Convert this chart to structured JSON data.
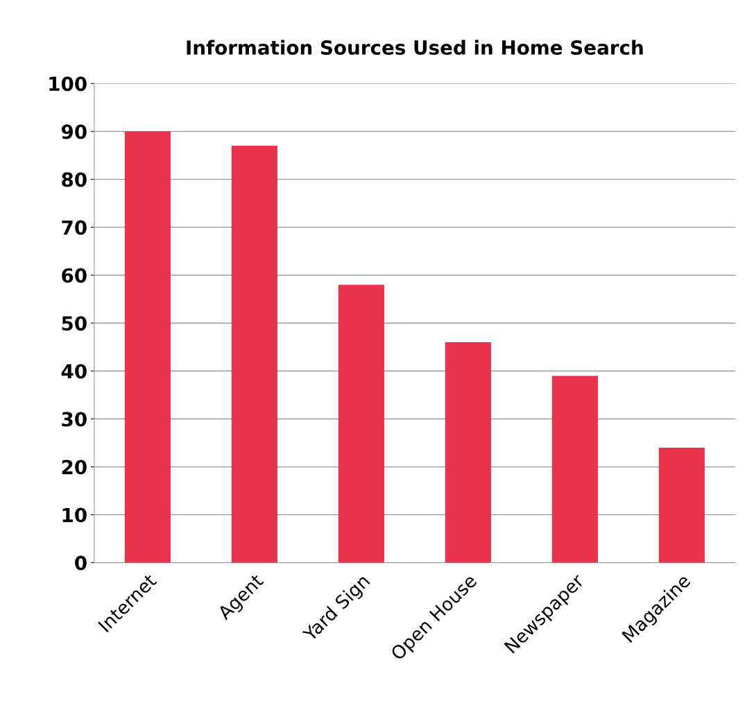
{
  "chart_data": {
    "type": "bar",
    "title": "Information Sources Used in Home Search",
    "categories": [
      "Internet",
      "Agent",
      "Yard Sign",
      "Open House",
      "Newspaper",
      "Magazine"
    ],
    "values": [
      90,
      87,
      58,
      46,
      39,
      24
    ],
    "color": "#e8334a",
    "ylim": [
      0,
      100
    ],
    "yticks": [
      0,
      10,
      20,
      30,
      40,
      50,
      60,
      70,
      80,
      90,
      100
    ],
    "grid": "y"
  }
}
